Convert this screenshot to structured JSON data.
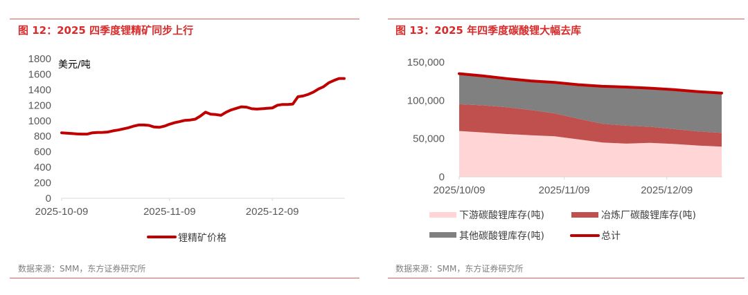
{
  "colors": {
    "title": "#d92b2b",
    "rule": "#e06060",
    "line": "#c00000",
    "downstream": "#ffd5d5",
    "smelter": "#c0504d",
    "other": "#808080",
    "total": "#c00000",
    "axis_text": "#595959"
  },
  "left": {
    "title": "图 12：2025 四季度锂精矿同步上行",
    "source": "数据来源：SMM，东方证券研究所"
  },
  "right": {
    "title": "图 13：2025 年四季度碳酸锂大幅去库",
    "source": "数据来源：SMM，东方证券研究所"
  },
  "chart_data": [
    {
      "type": "line",
      "title": "图 12：2025 四季度锂精矿同步上行",
      "ylabel": "美元/吨",
      "xlabel": "",
      "ylim": [
        0,
        1800
      ],
      "yticks": [
        "0",
        "200",
        "400",
        "600",
        "800",
        "1000",
        "1200",
        "1400",
        "1600",
        "1800"
      ],
      "ytick_values": [
        0,
        200,
        400,
        600,
        800,
        1000,
        1200,
        1400,
        1600,
        1800
      ],
      "xticks": [
        "2025-10-09",
        "2025-11-09",
        "2025-12-09"
      ],
      "xtick_index": [
        0,
        21,
        41
      ],
      "grid": false,
      "legend": "bottom",
      "series": [
        {
          "name": "锂精矿价格",
          "values": [
            845,
            840,
            835,
            830,
            828,
            828,
            845,
            848,
            850,
            855,
            870,
            880,
            895,
            910,
            930,
            945,
            945,
            940,
            920,
            915,
            930,
            955,
            975,
            990,
            1005,
            1010,
            1020,
            1060,
            1110,
            1085,
            1080,
            1070,
            1110,
            1140,
            1160,
            1180,
            1175,
            1155,
            1150,
            1155,
            1160,
            1165,
            1200,
            1210,
            1210,
            1215,
            1310,
            1320,
            1340,
            1370,
            1410,
            1440,
            1490,
            1520,
            1545,
            1545
          ]
        }
      ]
    },
    {
      "type": "area",
      "stacked": true,
      "title": "图 13：2025 年四季度碳酸锂大幅去库",
      "xlabel": "",
      "ylabel": "",
      "ylim": [
        0,
        150000
      ],
      "yticks": [
        "0",
        "50,000",
        "100,000",
        "150,000"
      ],
      "ytick_values": [
        0,
        50000,
        100000,
        150000
      ],
      "xticks": [
        "2025/10/09",
        "2025/11/09",
        "2025/12/09"
      ],
      "xtick_index": [
        0,
        4.4,
        8.7
      ],
      "grid": false,
      "legend": "bottom",
      "x": [
        "2025/10/09",
        "2025/10/16",
        "2025/10/23",
        "2025/10/30",
        "2025/11/06",
        "2025/11/13",
        "2025/11/20",
        "2025/11/27",
        "2025/12/04",
        "2025/12/11",
        "2025/12/18",
        "2025/12/25"
      ],
      "series": [
        {
          "name": "下游碳酸锂库存(吨)",
          "kind": "area",
          "values": [
            60000,
            58000,
            56000,
            54500,
            53000,
            49000,
            45000,
            43500,
            44500,
            43000,
            41000,
            39500
          ]
        },
        {
          "name": "冶炼厂碳酸锂库存(吨)",
          "kind": "area",
          "values": [
            35000,
            35500,
            35000,
            33000,
            30000,
            27000,
            24500,
            23500,
            21000,
            19500,
            18500,
            18000
          ]
        },
        {
          "name": "其他碳酸锂库存(吨)",
          "kind": "area",
          "values": [
            40000,
            38500,
            37500,
            38000,
            40500,
            44500,
            49000,
            50500,
            50500,
            51500,
            52000,
            52000
          ]
        },
        {
          "name": "总计",
          "kind": "line",
          "values": [
            135000,
            132000,
            128500,
            125500,
            123500,
            120500,
            118500,
            117500,
            116000,
            114000,
            111500,
            109500
          ]
        }
      ]
    }
  ]
}
